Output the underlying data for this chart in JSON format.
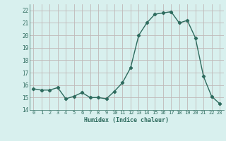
{
  "x": [
    0,
    1,
    2,
    3,
    4,
    5,
    6,
    7,
    8,
    9,
    10,
    11,
    12,
    13,
    14,
    15,
    16,
    17,
    18,
    19,
    20,
    21,
    22,
    23
  ],
  "y": [
    15.7,
    15.6,
    15.6,
    15.8,
    14.9,
    15.1,
    15.4,
    15.0,
    15.0,
    14.9,
    15.5,
    16.2,
    17.4,
    20.0,
    21.0,
    21.7,
    21.8,
    21.9,
    21.0,
    21.2,
    19.8,
    16.7,
    15.1,
    14.5
  ],
  "xlim": [
    -0.5,
    23.5
  ],
  "ylim": [
    14,
    22.5
  ],
  "yticks": [
    14,
    15,
    16,
    17,
    18,
    19,
    20,
    21,
    22
  ],
  "xtick_labels": [
    "0",
    "1",
    "2",
    "3",
    "4",
    "5",
    "6",
    "7",
    "8",
    "9",
    "10",
    "11",
    "12",
    "13",
    "14",
    "15",
    "16",
    "17",
    "18",
    "19",
    "20",
    "21",
    "22",
    "23"
  ],
  "xlabel": "Humidex (Indice chaleur)",
  "line_color": "#2e6b5e",
  "bg_color": "#d8f0ee",
  "grid_color": "#c0b8b8",
  "tick_color": "#2e6b5e",
  "marker": "D",
  "markersize": 2.2,
  "linewidth": 1.0
}
